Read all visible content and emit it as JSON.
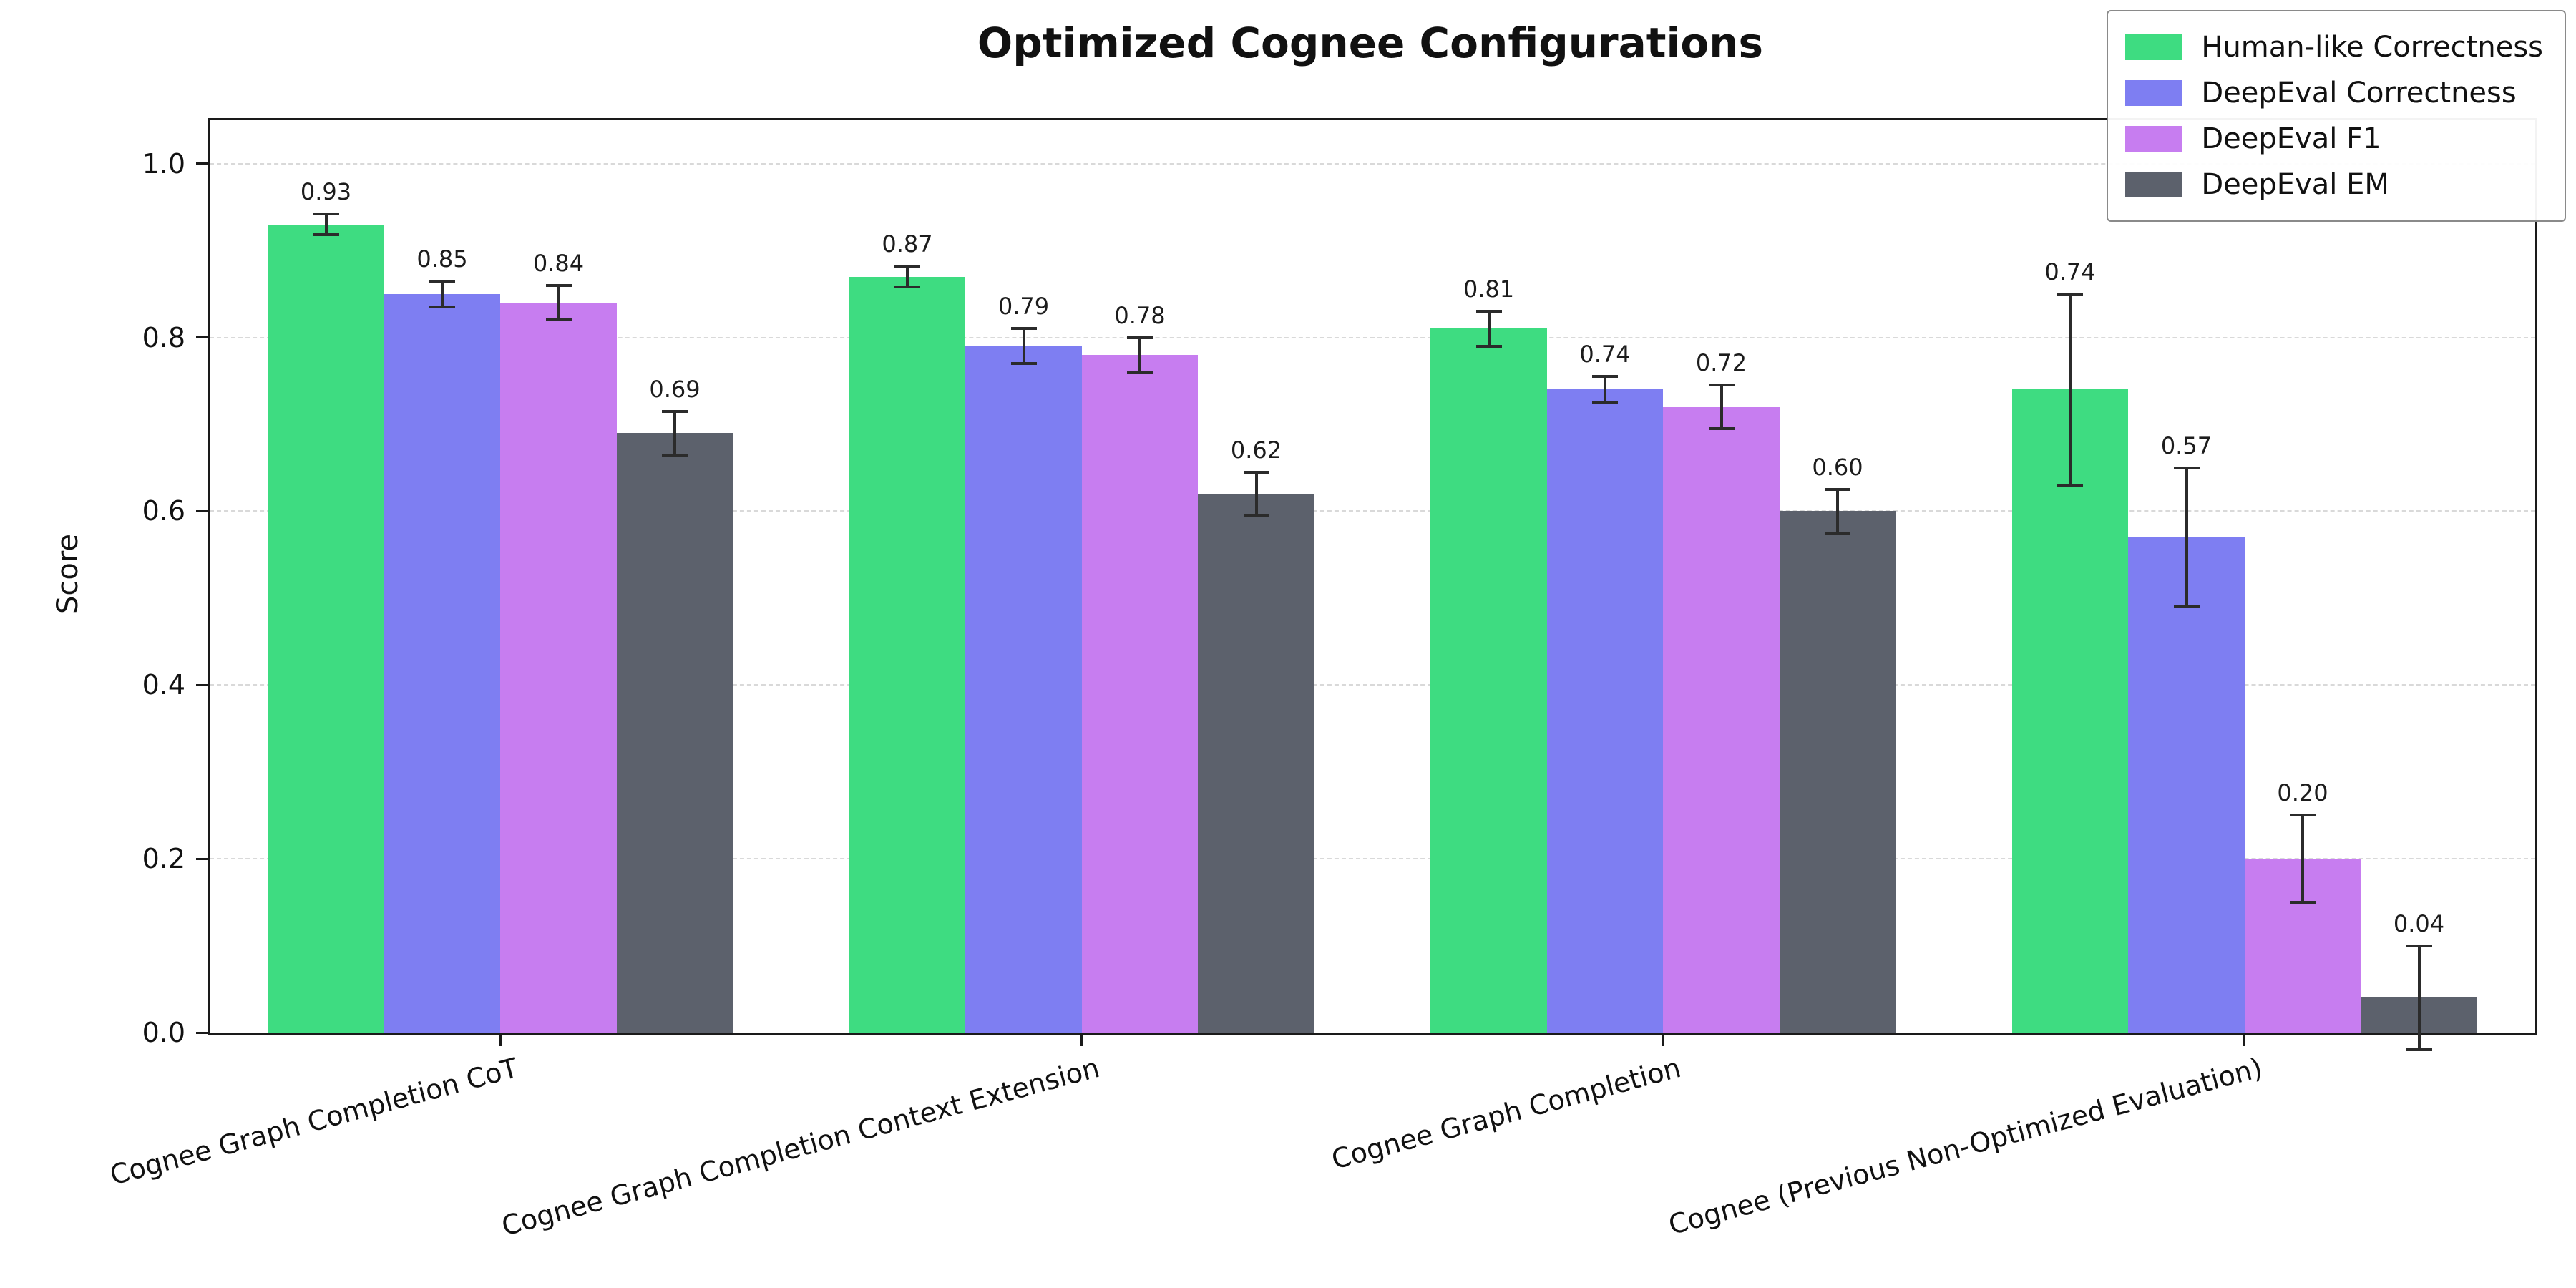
{
  "chart_data": {
    "type": "bar",
    "title": "Optimized Cognee Configurations",
    "xlabel": "",
    "ylabel": "Score",
    "ylim": [
      0,
      1.05
    ],
    "yticks": [
      0.0,
      0.2,
      0.4,
      0.6,
      0.8,
      1.0
    ],
    "grid": true,
    "legend_position": "upper right",
    "error_color": "#2b2b2b",
    "grid_color": "#d9d9d9",
    "categories": [
      "Cognee Graph Completion CoT",
      "Cognee Graph Completion Context Extension",
      "Cognee Graph Completion",
      "Cognee (Previous Non-Optimized Evaluation)"
    ],
    "series": [
      {
        "name": "Human-like Correctness",
        "color": "#3edc81",
        "values": [
          0.93,
          0.87,
          0.81,
          0.74
        ],
        "errors": [
          0.012,
          0.012,
          0.02,
          0.11
        ]
      },
      {
        "name": "DeepEval Correctness",
        "color": "#7e7ef2",
        "values": [
          0.85,
          0.79,
          0.74,
          0.57
        ],
        "errors": [
          0.015,
          0.02,
          0.015,
          0.08
        ]
      },
      {
        "name": "DeepEval F1",
        "color": "#c77df0",
        "values": [
          0.84,
          0.78,
          0.72,
          0.2
        ],
        "errors": [
          0.02,
          0.02,
          0.025,
          0.05
        ]
      },
      {
        "name": "DeepEval EM",
        "color": "#5c616c",
        "values": [
          0.69,
          0.62,
          0.6,
          0.04
        ],
        "errors": [
          0.025,
          0.025,
          0.025,
          0.06
        ]
      }
    ]
  }
}
